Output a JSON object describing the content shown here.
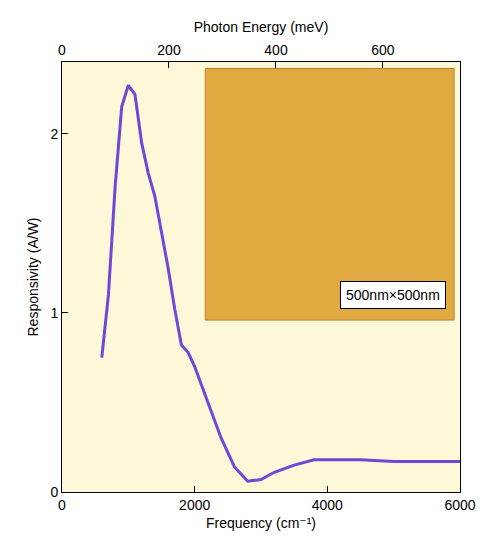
{
  "chart_data": {
    "type": "line",
    "x_label": "Frequency (cm⁻¹)",
    "y_label": "Responsivity (A/W)",
    "x2_label": "Photon Energy (meV)",
    "annotations": [
      "500nm×500nm"
    ],
    "x": [
      600,
      700,
      800,
      900,
      1000,
      1100,
      1200,
      1300,
      1400,
      1500,
      1600,
      1700,
      1800,
      1900,
      2000,
      2200,
      2400,
      2600,
      2800,
      3000,
      3200,
      3500,
      3800,
      4000,
      4500,
      5000,
      5500,
      6000
    ],
    "series": [
      {
        "name": "Responsivity",
        "color": "#7048d8",
        "values": [
          0.75,
          1.1,
          1.7,
          2.15,
          2.27,
          2.22,
          1.95,
          1.78,
          1.65,
          1.45,
          1.25,
          1.02,
          0.82,
          0.78,
          0.7,
          0.5,
          0.3,
          0.14,
          0.06,
          0.07,
          0.11,
          0.15,
          0.18,
          0.18,
          0.18,
          0.17,
          0.17,
          0.17
        ]
      }
    ],
    "xlim": [
      0,
      6000
    ],
    "xticks": [
      0,
      2000,
      4000,
      6000
    ],
    "ylim": [
      0,
      2.4
    ],
    "yticks": [
      0,
      1,
      2
    ],
    "x2lim": [
      0,
      744
    ],
    "x2ticks": [
      0,
      200,
      400,
      600
    ],
    "grid": false
  }
}
